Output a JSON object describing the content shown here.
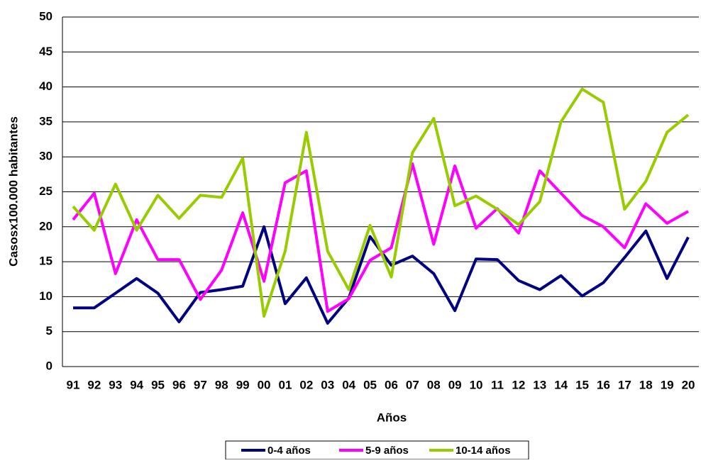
{
  "chart_data": {
    "type": "line",
    "x_label": "Años",
    "y_label": "Casosx100.000 habitantes",
    "categories": [
      "91",
      "92",
      "93",
      "94",
      "95",
      "96",
      "97",
      "98",
      "99",
      "00",
      "01",
      "02",
      "03",
      "04",
      "05",
      "06",
      "07",
      "08",
      "09",
      "10",
      "11",
      "12",
      "13",
      "14",
      "15",
      "16",
      "17",
      "18",
      "19",
      "20"
    ],
    "series": [
      {
        "name": "0-4 años",
        "color": "#000080",
        "values": [
          8.4,
          8.4,
          10.5,
          12.6,
          10.5,
          6.4,
          10.6,
          11.0,
          11.5,
          20.0,
          9.0,
          12.7,
          6.2,
          9.8,
          18.6,
          14.5,
          15.8,
          13.3,
          8.0,
          15.4,
          15.3,
          12.3,
          11.0,
          13.0,
          10.1,
          12.0,
          15.6,
          19.4,
          12.6,
          18.5
        ]
      },
      {
        "name": "5-9 años",
        "color": "#ff00ff",
        "values": [
          21.0,
          24.8,
          13.3,
          21.0,
          15.3,
          15.3,
          9.6,
          13.8,
          22.0,
          12.2,
          26.3,
          28.0,
          7.9,
          9.7,
          15.2,
          17.0,
          29.0,
          17.5,
          28.7,
          19.8,
          22.6,
          19.1,
          28.0,
          24.8,
          21.6,
          20.0,
          17.0,
          23.3,
          20.5,
          22.2
        ]
      },
      {
        "name": "10-14 años",
        "color": "#99cc00",
        "values": [
          22.9,
          19.5,
          26.1,
          19.5,
          24.5,
          21.2,
          24.5,
          24.2,
          29.8,
          7.2,
          16.5,
          33.5,
          16.5,
          11.0,
          20.2,
          12.8,
          30.6,
          35.5,
          23.0,
          24.4,
          22.5,
          20.3,
          23.6,
          35.0,
          39.7,
          37.8,
          22.5,
          26.5,
          33.5,
          36.0
        ]
      }
    ],
    "ylim": [
      0,
      50
    ],
    "yticks": [
      0,
      5,
      10,
      15,
      20,
      25,
      30,
      35,
      40,
      45,
      50
    ],
    "grid": true,
    "legend": "bottom"
  }
}
